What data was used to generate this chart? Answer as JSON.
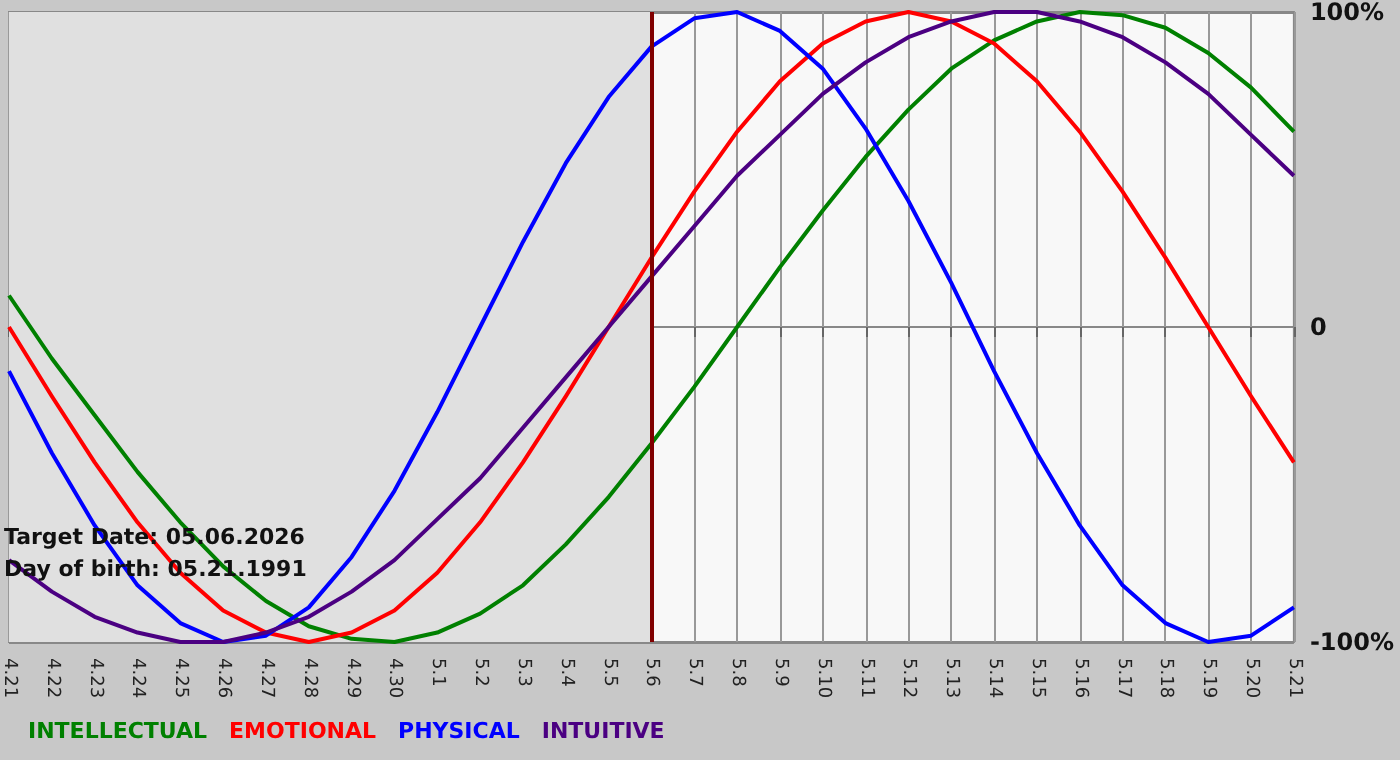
{
  "chart_data": {
    "type": "line",
    "categories": [
      "4.21",
      "4.22",
      "4.23",
      "4.24",
      "4.25",
      "4.26",
      "4.27",
      "4.28",
      "4.29",
      "4.30",
      "5.1",
      "5.2",
      "5.3",
      "5.4",
      "5.5",
      "5.6",
      "5.7",
      "5.8",
      "5.9",
      "5.10",
      "5.11",
      "5.12",
      "5.13",
      "5.14",
      "5.15",
      "5.16",
      "5.17",
      "5.18",
      "5.19",
      "5.20",
      "5.21"
    ],
    "series": [
      {
        "name": "INTELLECTUAL",
        "color": "#008000",
        "values": [
          10,
          -10,
          -28,
          -46,
          -62,
          -76,
          -87,
          -95,
          -99,
          -100,
          -97,
          -91,
          -82,
          -69,
          -54,
          -37,
          -19,
          0,
          19,
          37,
          54,
          69,
          82,
          91,
          97,
          100,
          99,
          95,
          87,
          76,
          62
        ]
      },
      {
        "name": "EMOTIONAL",
        "color": "#ff0000",
        "values": [
          0,
          -22,
          -43,
          -62,
          -78,
          -90,
          -97,
          -100,
          -97,
          -90,
          -78,
          -62,
          -43,
          -22,
          0,
          22,
          43,
          62,
          78,
          90,
          97,
          100,
          97,
          90,
          78,
          62,
          43,
          22,
          0,
          -22,
          -43
        ]
      },
      {
        "name": "PHYSICAL",
        "color": "#0000ff",
        "values": [
          -14,
          -40,
          -63,
          -82,
          -94,
          -100,
          -98,
          -89,
          -73,
          -52,
          -27,
          0,
          27,
          52,
          73,
          89,
          98,
          100,
          94,
          82,
          63,
          40,
          14,
          -14,
          -40,
          -63,
          -82,
          -94,
          -100,
          -98,
          -89
        ]
      },
      {
        "name": "INTUITIVE",
        "color": "#4b0082",
        "values": [
          -74,
          -84,
          -92,
          -97,
          -100,
          -100,
          -97,
          -92,
          -84,
          -74,
          -61,
          -48,
          -32,
          -16,
          0,
          16,
          32,
          48,
          61,
          74,
          84,
          92,
          97,
          100,
          100,
          97,
          92,
          84,
          74,
          61,
          48
        ]
      }
    ],
    "ylim": [
      -100,
      100
    ],
    "yticks": [
      {
        "value": -100,
        "label": "-100%"
      },
      0,
      {
        "value": 100,
        "label": "100%"
      }
    ],
    "ref_lines": [
      {
        "axis": "x",
        "value": "5.6",
        "label": null,
        "color": "#800000"
      }
    ],
    "bands": [
      {
        "axis": "x",
        "from": "4.21",
        "to": "5.6",
        "label": null,
        "color": "#e0e0e0"
      }
    ],
    "annotations": [
      "Target Date: 05.06.2026",
      "Day of birth: 05.21.1991"
    ],
    "grid": true,
    "legend": "bottom left",
    "marker": "none",
    "line_style": "solid"
  }
}
